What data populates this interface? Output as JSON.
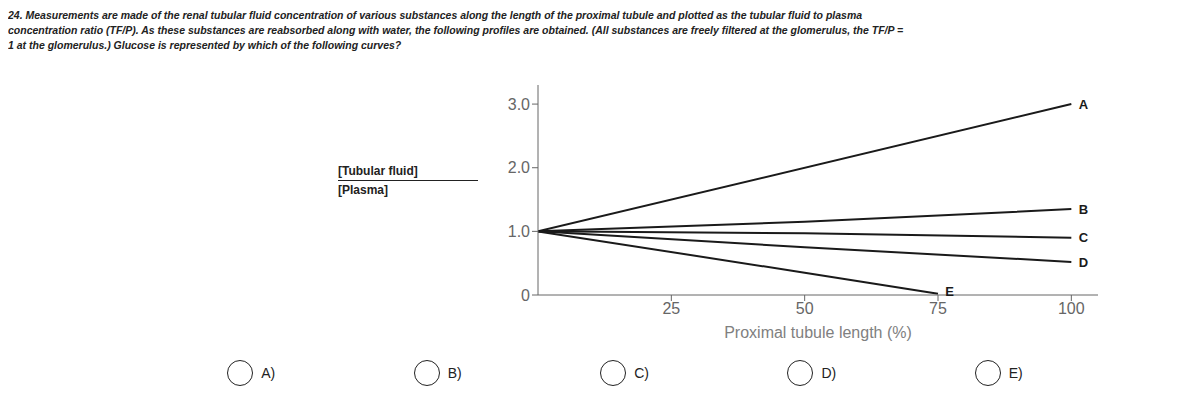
{
  "chart_data": {
    "type": "line",
    "title": [
      "24.  Measurements are made of the renal tubular fluid concentration of various substances along the length of the proximal tubule and plotted as the tubular fluid to plasma",
      "concentration ratio (TF/P). As these substances are reabsorbed along with water, the following profiles are obtained. (All substances are freely filtered at the glomerulus, the TF/P =",
      "1 at the glomerulus.) Glucose is represented by which of the following curves?"
    ],
    "xlabel": "Proximal tubule length (%)",
    "ylabel": [
      "[Tubular fluid]",
      "[Plasma]"
    ],
    "xlim": [
      0,
      105
    ],
    "ylim": [
      0,
      3.3
    ],
    "xticks": [
      25,
      50,
      75,
      100
    ],
    "yticks": [
      0,
      {
        "value": 1.0,
        "label": "1.0"
      },
      {
        "value": 2.0,
        "label": "2.0"
      },
      {
        "value": 3.0,
        "label": "3.0"
      }
    ],
    "series": [
      {
        "name": "A",
        "color": "#1a1a1a",
        "x": [
          0,
          100
        ],
        "values": [
          1.0,
          3.0
        ]
      },
      {
        "name": "B",
        "color": "#1a1a1a",
        "x": [
          0,
          50,
          100
        ],
        "values": [
          1.0,
          1.15,
          1.35
        ]
      },
      {
        "name": "C",
        "color": "#1a1a1a",
        "x": [
          0,
          50,
          100
        ],
        "values": [
          1.0,
          0.97,
          0.9
        ]
      },
      {
        "name": "D",
        "color": "#1a1a1a",
        "x": [
          0,
          50,
          100
        ],
        "values": [
          1.0,
          0.75,
          0.52
        ]
      },
      {
        "name": "E",
        "color": "#1a1a1a",
        "x": [
          0,
          50,
          75
        ],
        "values": [
          1.0,
          0.35,
          0.02
        ]
      }
    ],
    "annotations": [
      {
        "text": "A",
        "x": 101,
        "y": 3.0
      },
      {
        "text": "B",
        "x": 101,
        "y": 1.35
      },
      {
        "text": "C",
        "x": 101,
        "y": 0.9
      },
      {
        "text": "D",
        "x": 101,
        "y": 0.52
      },
      {
        "text": "E",
        "x": 76,
        "y": 0.05
      },
      {
        "text": "A)"
      },
      {
        "text": "B)"
      },
      {
        "text": "C)"
      },
      {
        "text": "D)"
      },
      {
        "text": "E)"
      }
    ]
  }
}
